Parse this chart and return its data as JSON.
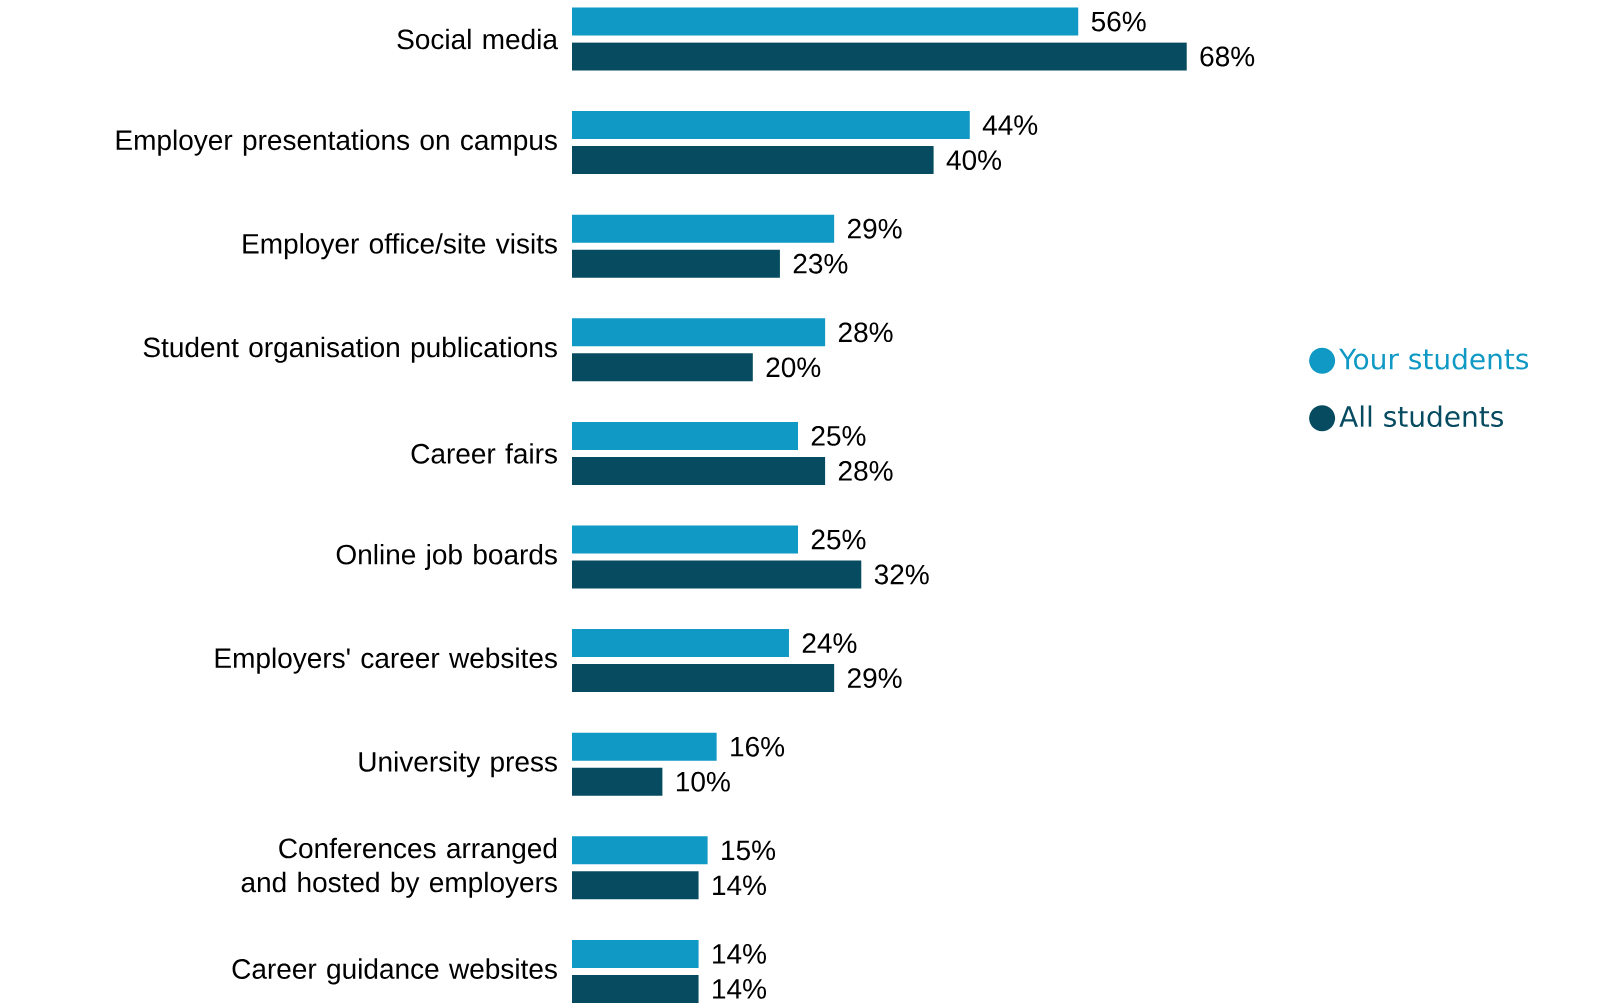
{
  "chart_data": {
    "type": "bar",
    "orientation": "horizontal",
    "legend": "right",
    "categories": [
      "Social media",
      "Employer presentations on campus",
      "Employer office/site visits",
      "Student organisation publications",
      "Career fairs",
      "Online job boards",
      "Employers' career websites",
      "University press",
      "Conferences arranged and hosted by employers",
      "Career guidance websites"
    ],
    "series": [
      {
        "name": "Your students",
        "color": "#0f99c4",
        "values": [
          56,
          44,
          29,
          28,
          25,
          25,
          24,
          16,
          15,
          14
        ],
        "value_labels": [
          "56%",
          "44%",
          "29%",
          "28%",
          "25%",
          "25%",
          "24%",
          "16%",
          "15%",
          "14%"
        ]
      },
      {
        "name": "All students",
        "color": "#074b60",
        "values": [
          68,
          40,
          23,
          20,
          28,
          32,
          29,
          10,
          14,
          14
        ],
        "value_labels": [
          "68%",
          "40%",
          "23%",
          "20%",
          "28%",
          "32%",
          "29%",
          "10%",
          "14%",
          "14%"
        ]
      }
    ]
  }
}
